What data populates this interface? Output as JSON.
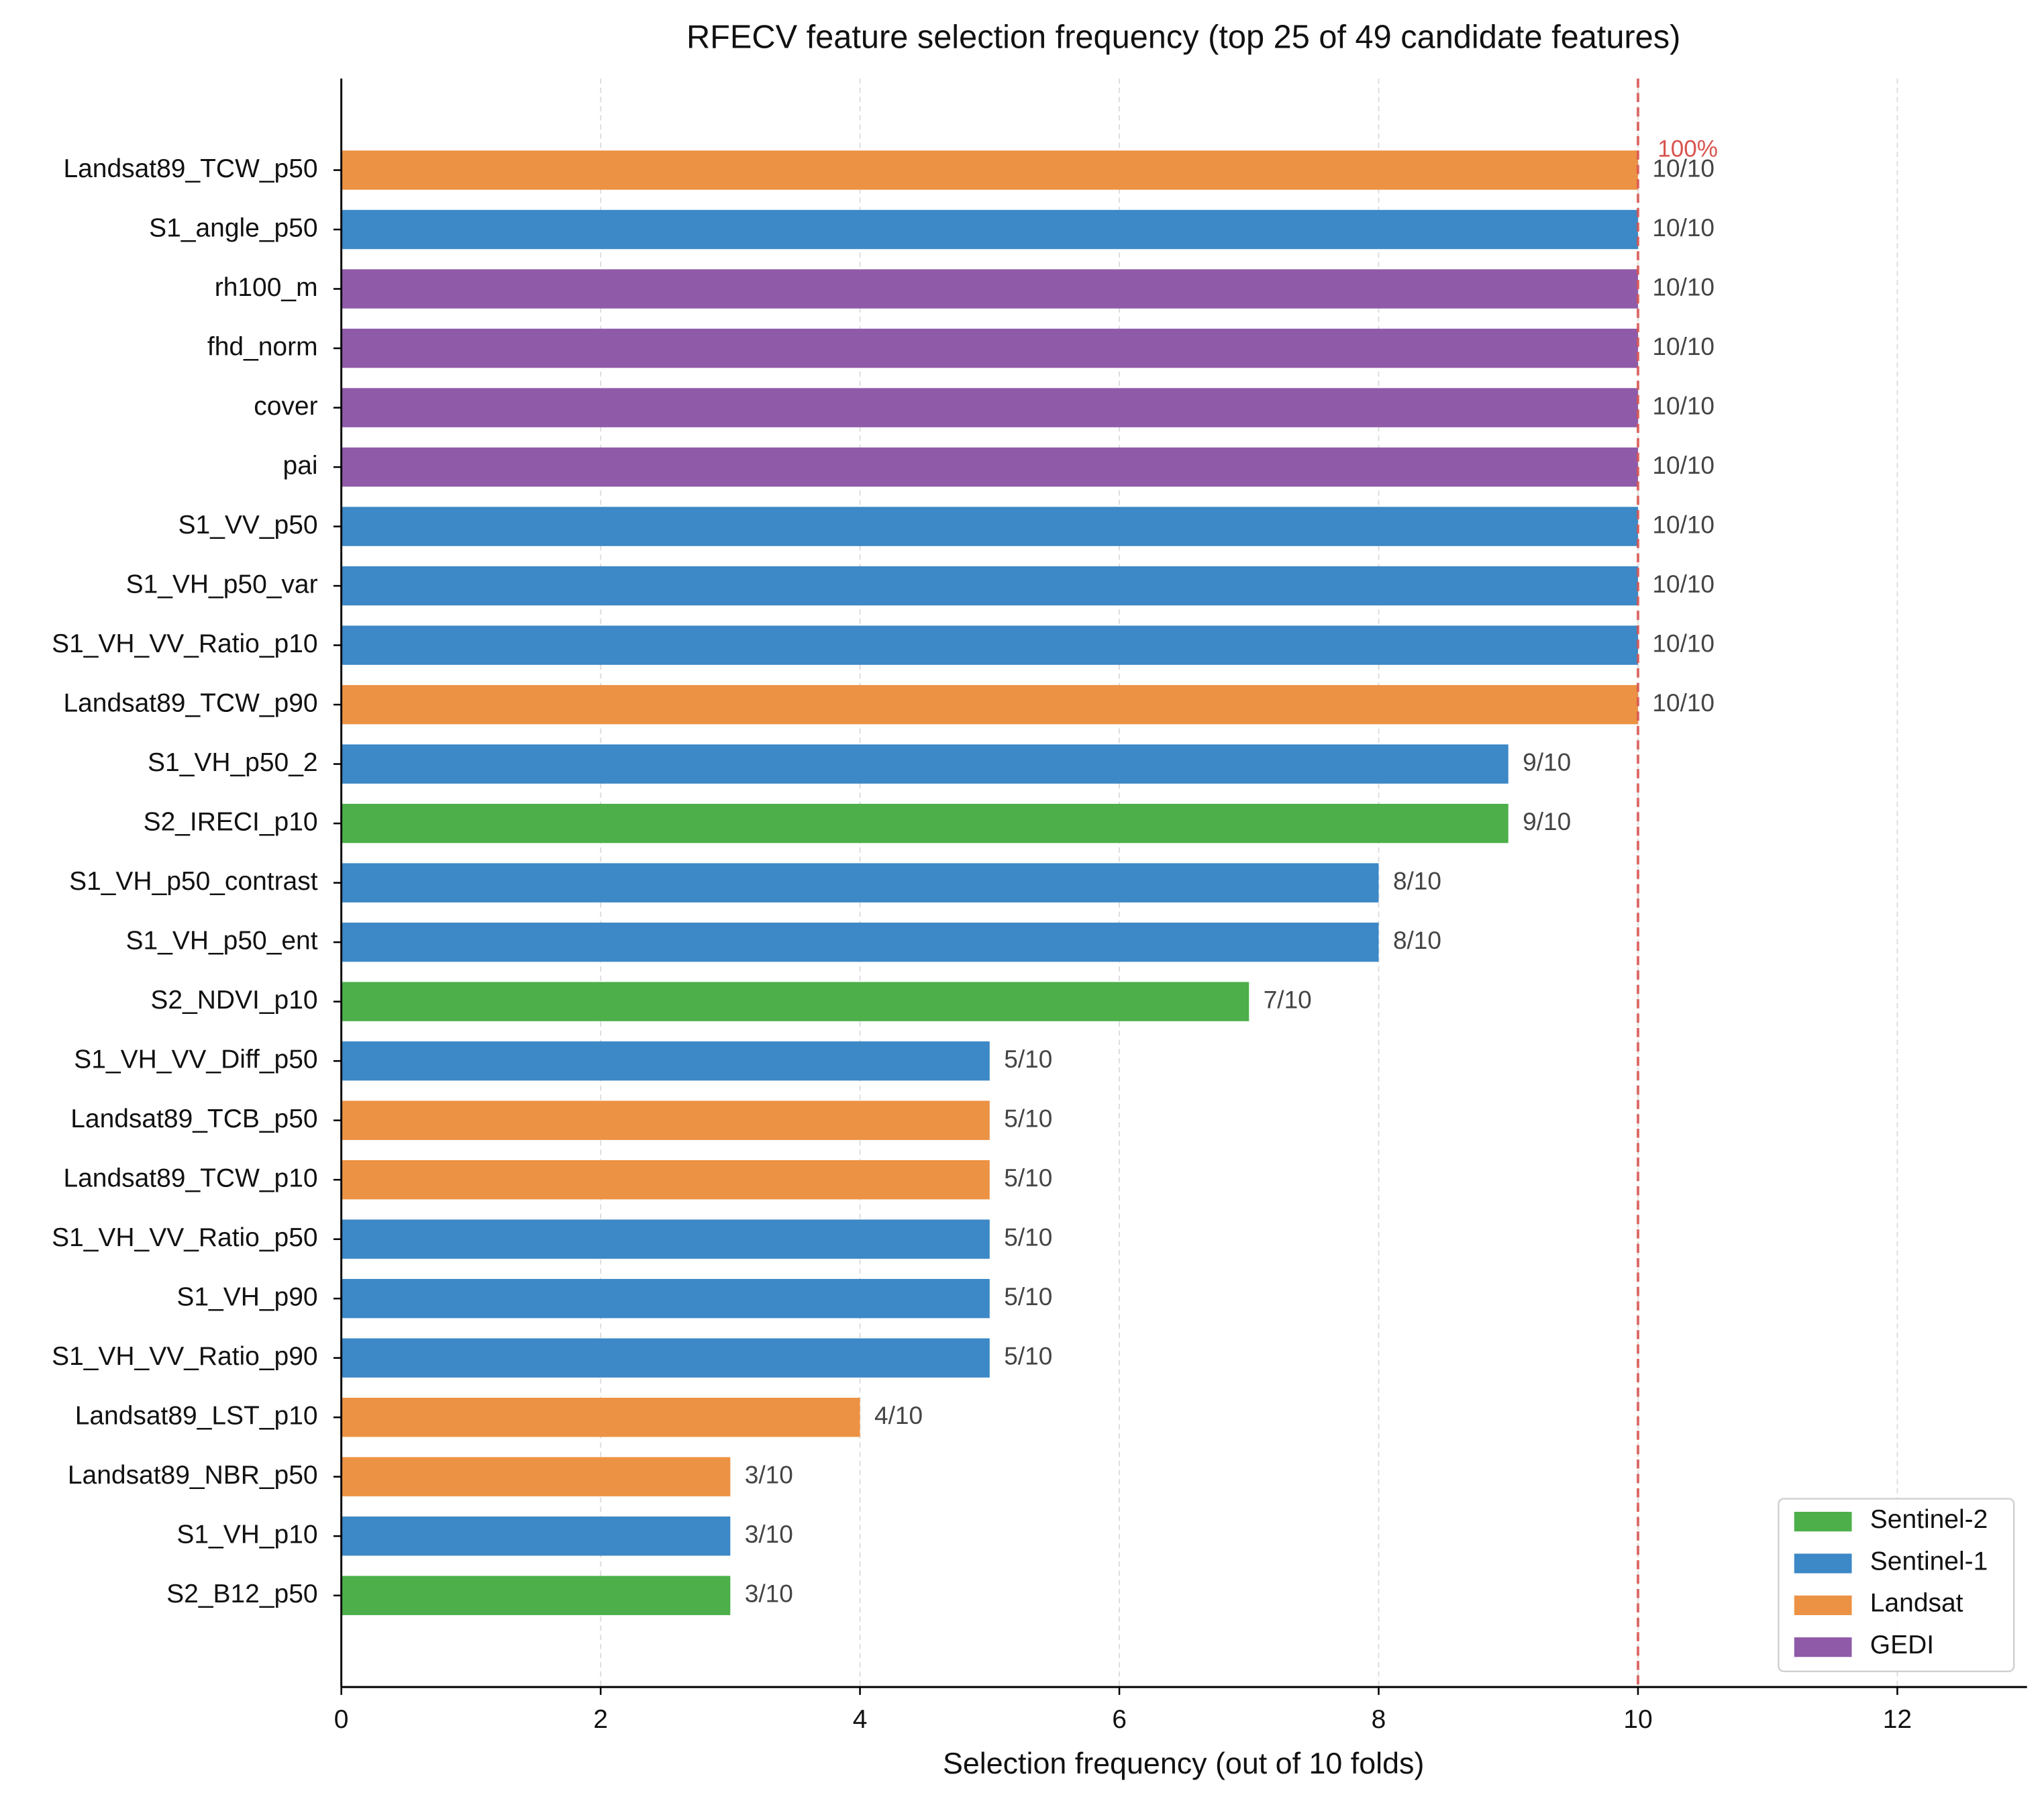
{
  "chart_data": {
    "type": "bar",
    "orientation": "horizontal",
    "title": "RFECV feature selection frequency (top 25 of 49 candidate features)",
    "x_label": "Selection frequency (out of 10 folds)",
    "categories": [
      "Landsat89_TCW_p50",
      "S1_angle_p50",
      "rh100_m",
      "fhd_norm",
      "cover",
      "pai",
      "S1_VV_p50",
      "S1_VH_p50_var",
      "S1_VH_VV_Ratio_p10",
      "Landsat89_TCW_p90",
      "S1_VH_p50_2",
      "S2_IRECI_p10",
      "S1_VH_p50_contrast",
      "S1_VH_p50_ent",
      "S2_NDVI_p10",
      "S1_VH_VV_Diff_p50",
      "Landsat89_TCB_p50",
      "Landsat89_TCW_p10",
      "S1_VH_VV_Ratio_p50",
      "S1_VH_p90",
      "S1_VH_VV_Ratio_p90",
      "Landsat89_LST_p10",
      "Landsat89_NBR_p50",
      "S1_VH_p10",
      "S2_B12_p50"
    ],
    "series": [
      {
        "name": "Sentinel-2",
        "color": "#4caf4a",
        "values": [
          null,
          null,
          null,
          null,
          null,
          null,
          null,
          null,
          null,
          null,
          null,
          9,
          null,
          null,
          7,
          null,
          null,
          null,
          null,
          null,
          null,
          null,
          null,
          null,
          3
        ],
        "value_labels": [
          null,
          null,
          null,
          null,
          null,
          null,
          null,
          null,
          null,
          null,
          null,
          "9/10",
          null,
          null,
          "7/10",
          null,
          null,
          null,
          null,
          null,
          null,
          null,
          null,
          null,
          "3/10"
        ]
      },
      {
        "name": "Sentinel-1",
        "color": "#3d88c6",
        "values": [
          null,
          10,
          null,
          null,
          null,
          null,
          10,
          10,
          10,
          null,
          9,
          null,
          8,
          8,
          null,
          5,
          null,
          null,
          5,
          5,
          5,
          null,
          null,
          3,
          null
        ],
        "value_labels": [
          null,
          "10/10",
          null,
          null,
          null,
          null,
          "10/10",
          "10/10",
          "10/10",
          null,
          "9/10",
          null,
          "8/10",
          "8/10",
          null,
          "5/10",
          null,
          null,
          "5/10",
          "5/10",
          "5/10",
          null,
          null,
          "3/10",
          null
        ]
      },
      {
        "name": "Landsat",
        "color": "#ec9244",
        "values": [
          10,
          null,
          null,
          null,
          null,
          null,
          null,
          null,
          null,
          10,
          null,
          null,
          null,
          null,
          null,
          null,
          5,
          5,
          null,
          null,
          null,
          4,
          3,
          null,
          null
        ],
        "value_labels": [
          "10/10",
          null,
          null,
          null,
          null,
          null,
          null,
          null,
          null,
          "10/10",
          null,
          null,
          null,
          null,
          null,
          null,
          "5/10",
          "5/10",
          null,
          null,
          null,
          "4/10",
          "3/10",
          null,
          null
        ]
      },
      {
        "name": "GEDI",
        "color": "#8f5ba9",
        "values": [
          null,
          null,
          10,
          10,
          10,
          10,
          null,
          null,
          null,
          null,
          null,
          null,
          null,
          null,
          null,
          null,
          null,
          null,
          null,
          null,
          null,
          null,
          null,
          null,
          null
        ],
        "value_labels": [
          null,
          null,
          "10/10",
          "10/10",
          "10/10",
          "10/10",
          null,
          null,
          null,
          null,
          null,
          null,
          null,
          null,
          null,
          null,
          null,
          null,
          null,
          null,
          null,
          null,
          null,
          null,
          null
        ]
      }
    ],
    "xlim": [
      0,
      13
    ],
    "xticks": [
      0,
      2,
      4,
      6,
      8,
      10,
      12
    ],
    "grid": true,
    "legend": "lower right",
    "reference_line": {
      "value": 10,
      "label": "100%",
      "color": "#d9534f"
    }
  }
}
